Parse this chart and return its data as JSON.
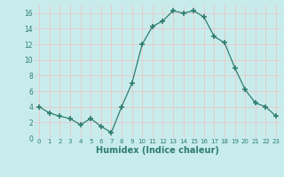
{
  "x": [
    0,
    1,
    2,
    3,
    4,
    5,
    6,
    7,
    8,
    9,
    10,
    11,
    12,
    13,
    14,
    15,
    16,
    17,
    18,
    19,
    20,
    21,
    22,
    23
  ],
  "y": [
    4.0,
    3.2,
    2.8,
    2.5,
    1.7,
    2.5,
    1.5,
    0.7,
    4.0,
    7.0,
    12.0,
    14.3,
    15.0,
    16.3,
    16.0,
    16.3,
    15.5,
    13.0,
    12.2,
    9.0,
    6.2,
    4.5,
    4.0,
    2.8
  ],
  "line_color": "#2e7d6e",
  "marker": "+",
  "marker_size": 4,
  "bg_color": "#c8ecec",
  "grid_color": "#e8c8c8",
  "xlabel": "Humidex (Indice chaleur)",
  "xlabel_fontsize": 7,
  "xlabel_color": "#2e7d6e",
  "tick_color": "#2e7d6e",
  "ylim": [
    0,
    17
  ],
  "xlim": [
    -0.5,
    23.5
  ],
  "yticks": [
    0,
    2,
    4,
    6,
    8,
    10,
    12,
    14,
    16
  ],
  "xticks": [
    0,
    1,
    2,
    3,
    4,
    5,
    6,
    7,
    8,
    9,
    10,
    11,
    12,
    13,
    14,
    15,
    16,
    17,
    18,
    19,
    20,
    21,
    22,
    23
  ]
}
